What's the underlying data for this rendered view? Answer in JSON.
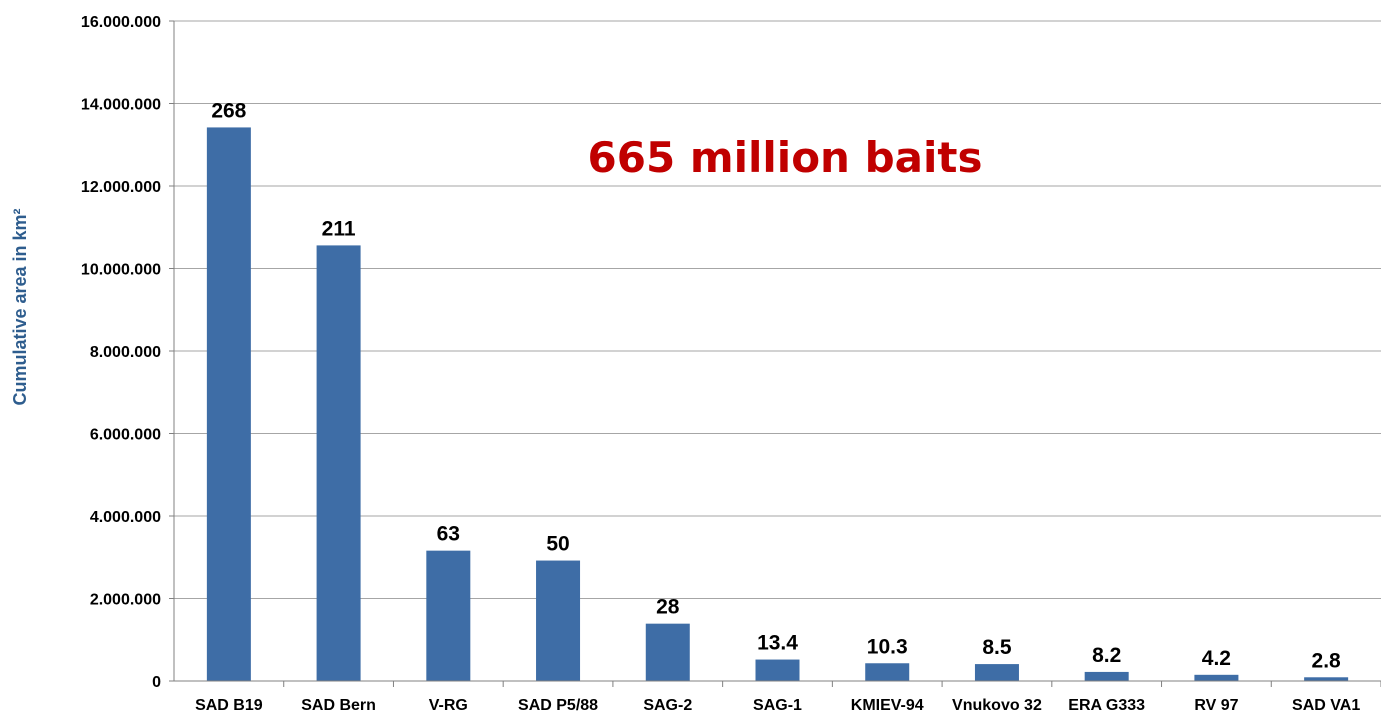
{
  "chart_data": {
    "type": "bar",
    "ylabel": "Cumulative area in km²",
    "annotation": "665 million baits",
    "categories": [
      "SAD B19",
      "SAD Bern",
      "V-RG",
      "SAD P5/88",
      "SAG-2",
      "SAG-1",
      "KMIEV-94",
      "Vnukovo 32",
      "ERA G333",
      "RV 97",
      "SAD VA1"
    ],
    "values": [
      13420000,
      10560000,
      3160000,
      2920000,
      1390000,
      520000,
      430000,
      410000,
      220000,
      150000,
      90000
    ],
    "data_labels": [
      "268",
      "211",
      "63",
      "50",
      "28",
      "13.4",
      "10.3",
      "8.5",
      "8.2",
      "4.2",
      "2.8"
    ],
    "ylim": [
      0,
      16000000
    ],
    "yticks": [
      0,
      2000000,
      4000000,
      6000000,
      8000000,
      10000000,
      12000000,
      14000000,
      16000000
    ],
    "ytick_labels": [
      "0",
      "2.000.000",
      "4.000.000",
      "6.000.000",
      "8.000.000",
      "10.000.000",
      "12.000.000",
      "14.000.000",
      "16.000.000"
    ],
    "grid": true,
    "colors": {
      "bar": "#3E6DA6",
      "grid": "#A6A6A6",
      "axis": "#808080",
      "annotation": "#C00000",
      "ylabel": "#2E5D8E"
    }
  }
}
